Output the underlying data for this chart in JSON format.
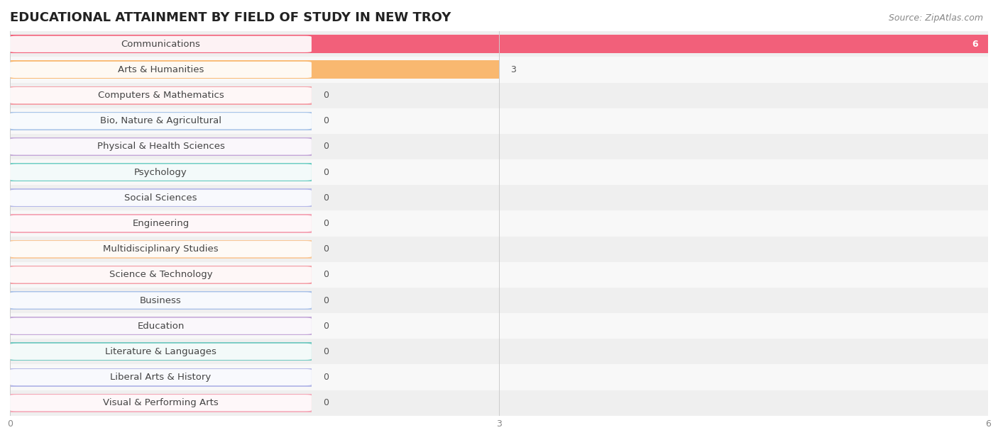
{
  "title": "EDUCATIONAL ATTAINMENT BY FIELD OF STUDY IN NEW TROY",
  "source": "Source: ZipAtlas.com",
  "categories": [
    "Communications",
    "Arts & Humanities",
    "Computers & Mathematics",
    "Bio, Nature & Agricultural",
    "Physical & Health Sciences",
    "Psychology",
    "Social Sciences",
    "Engineering",
    "Multidisciplinary Studies",
    "Science & Technology",
    "Business",
    "Education",
    "Literature & Languages",
    "Liberal Arts & History",
    "Visual & Performing Arts"
  ],
  "values": [
    6,
    3,
    0,
    0,
    0,
    0,
    0,
    0,
    0,
    0,
    0,
    0,
    0,
    0,
    0
  ],
  "bar_colors": [
    "#F2607A",
    "#F9B870",
    "#F4A0A8",
    "#A8C4E8",
    "#C4A8D8",
    "#70CEC4",
    "#B4B8E8",
    "#F4A8B8",
    "#F9C898",
    "#F4A0A8",
    "#A8C0E8",
    "#C4A8D8",
    "#70C8C0",
    "#B4B8E8",
    "#F4A8B8"
  ],
  "xlim_max": 6,
  "xticks": [
    0,
    3,
    6
  ],
  "title_fontsize": 13,
  "label_fontsize": 9.5,
  "value_fontsize": 9,
  "source_fontsize": 9,
  "bar_height": 0.72,
  "row_colors": [
    "#efefef",
    "#f8f8f8"
  ]
}
